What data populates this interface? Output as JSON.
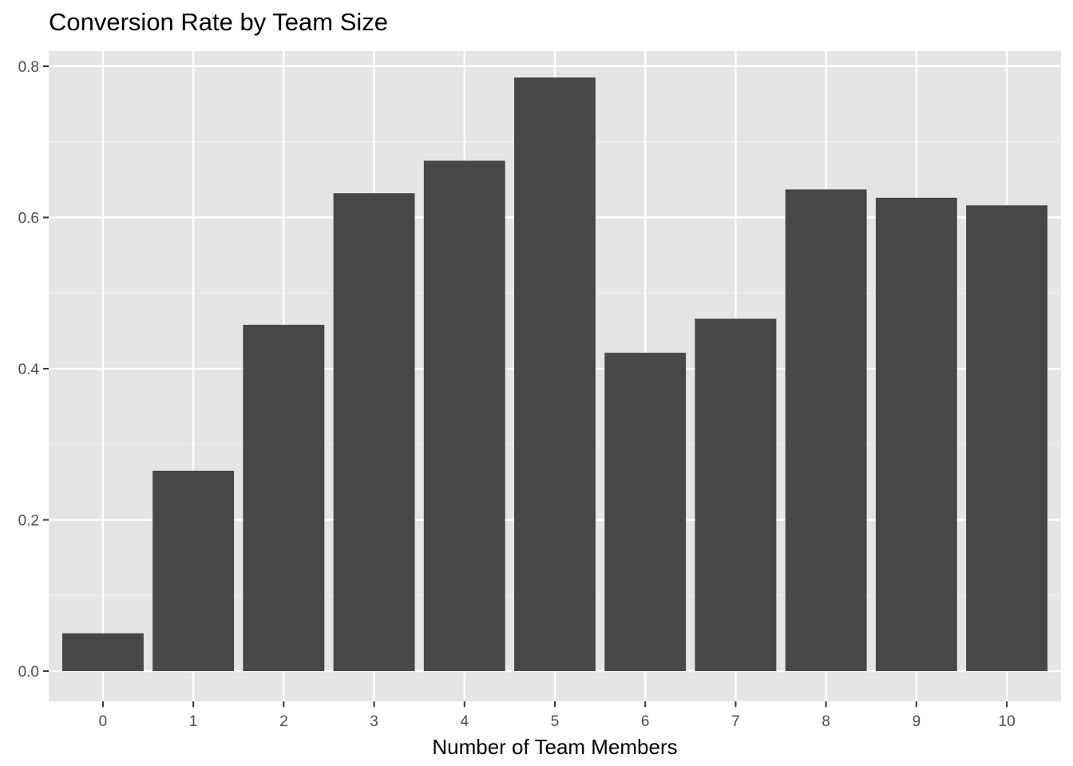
{
  "chart_data": {
    "type": "bar",
    "title": "Conversion Rate by Team Size",
    "xlabel": "Number of Team Members",
    "ylabel": "",
    "categories": [
      "0",
      "1",
      "2",
      "3",
      "4",
      "5",
      "6",
      "7",
      "8",
      "9",
      "10"
    ],
    "values": [
      0.05,
      0.265,
      0.458,
      0.632,
      0.675,
      0.785,
      0.421,
      0.466,
      0.637,
      0.626,
      0.616
    ],
    "ylim": [
      -0.04,
      0.82
    ],
    "y_ticks": [
      0.0,
      0.2,
      0.4,
      0.6,
      0.8
    ],
    "y_tick_labels": [
      "0.0",
      "0.2",
      "0.4",
      "0.6",
      "0.8"
    ],
    "grid": true,
    "legend": "none",
    "colors": {
      "bar": "#474747",
      "panel_background": "#e5e5e5",
      "grid_major": "#ffffff",
      "grid_minor": "#f2f2f2",
      "tick_mark": "#333333",
      "tick_text": "#4d4d4d",
      "page_background": "#ffffff"
    }
  }
}
